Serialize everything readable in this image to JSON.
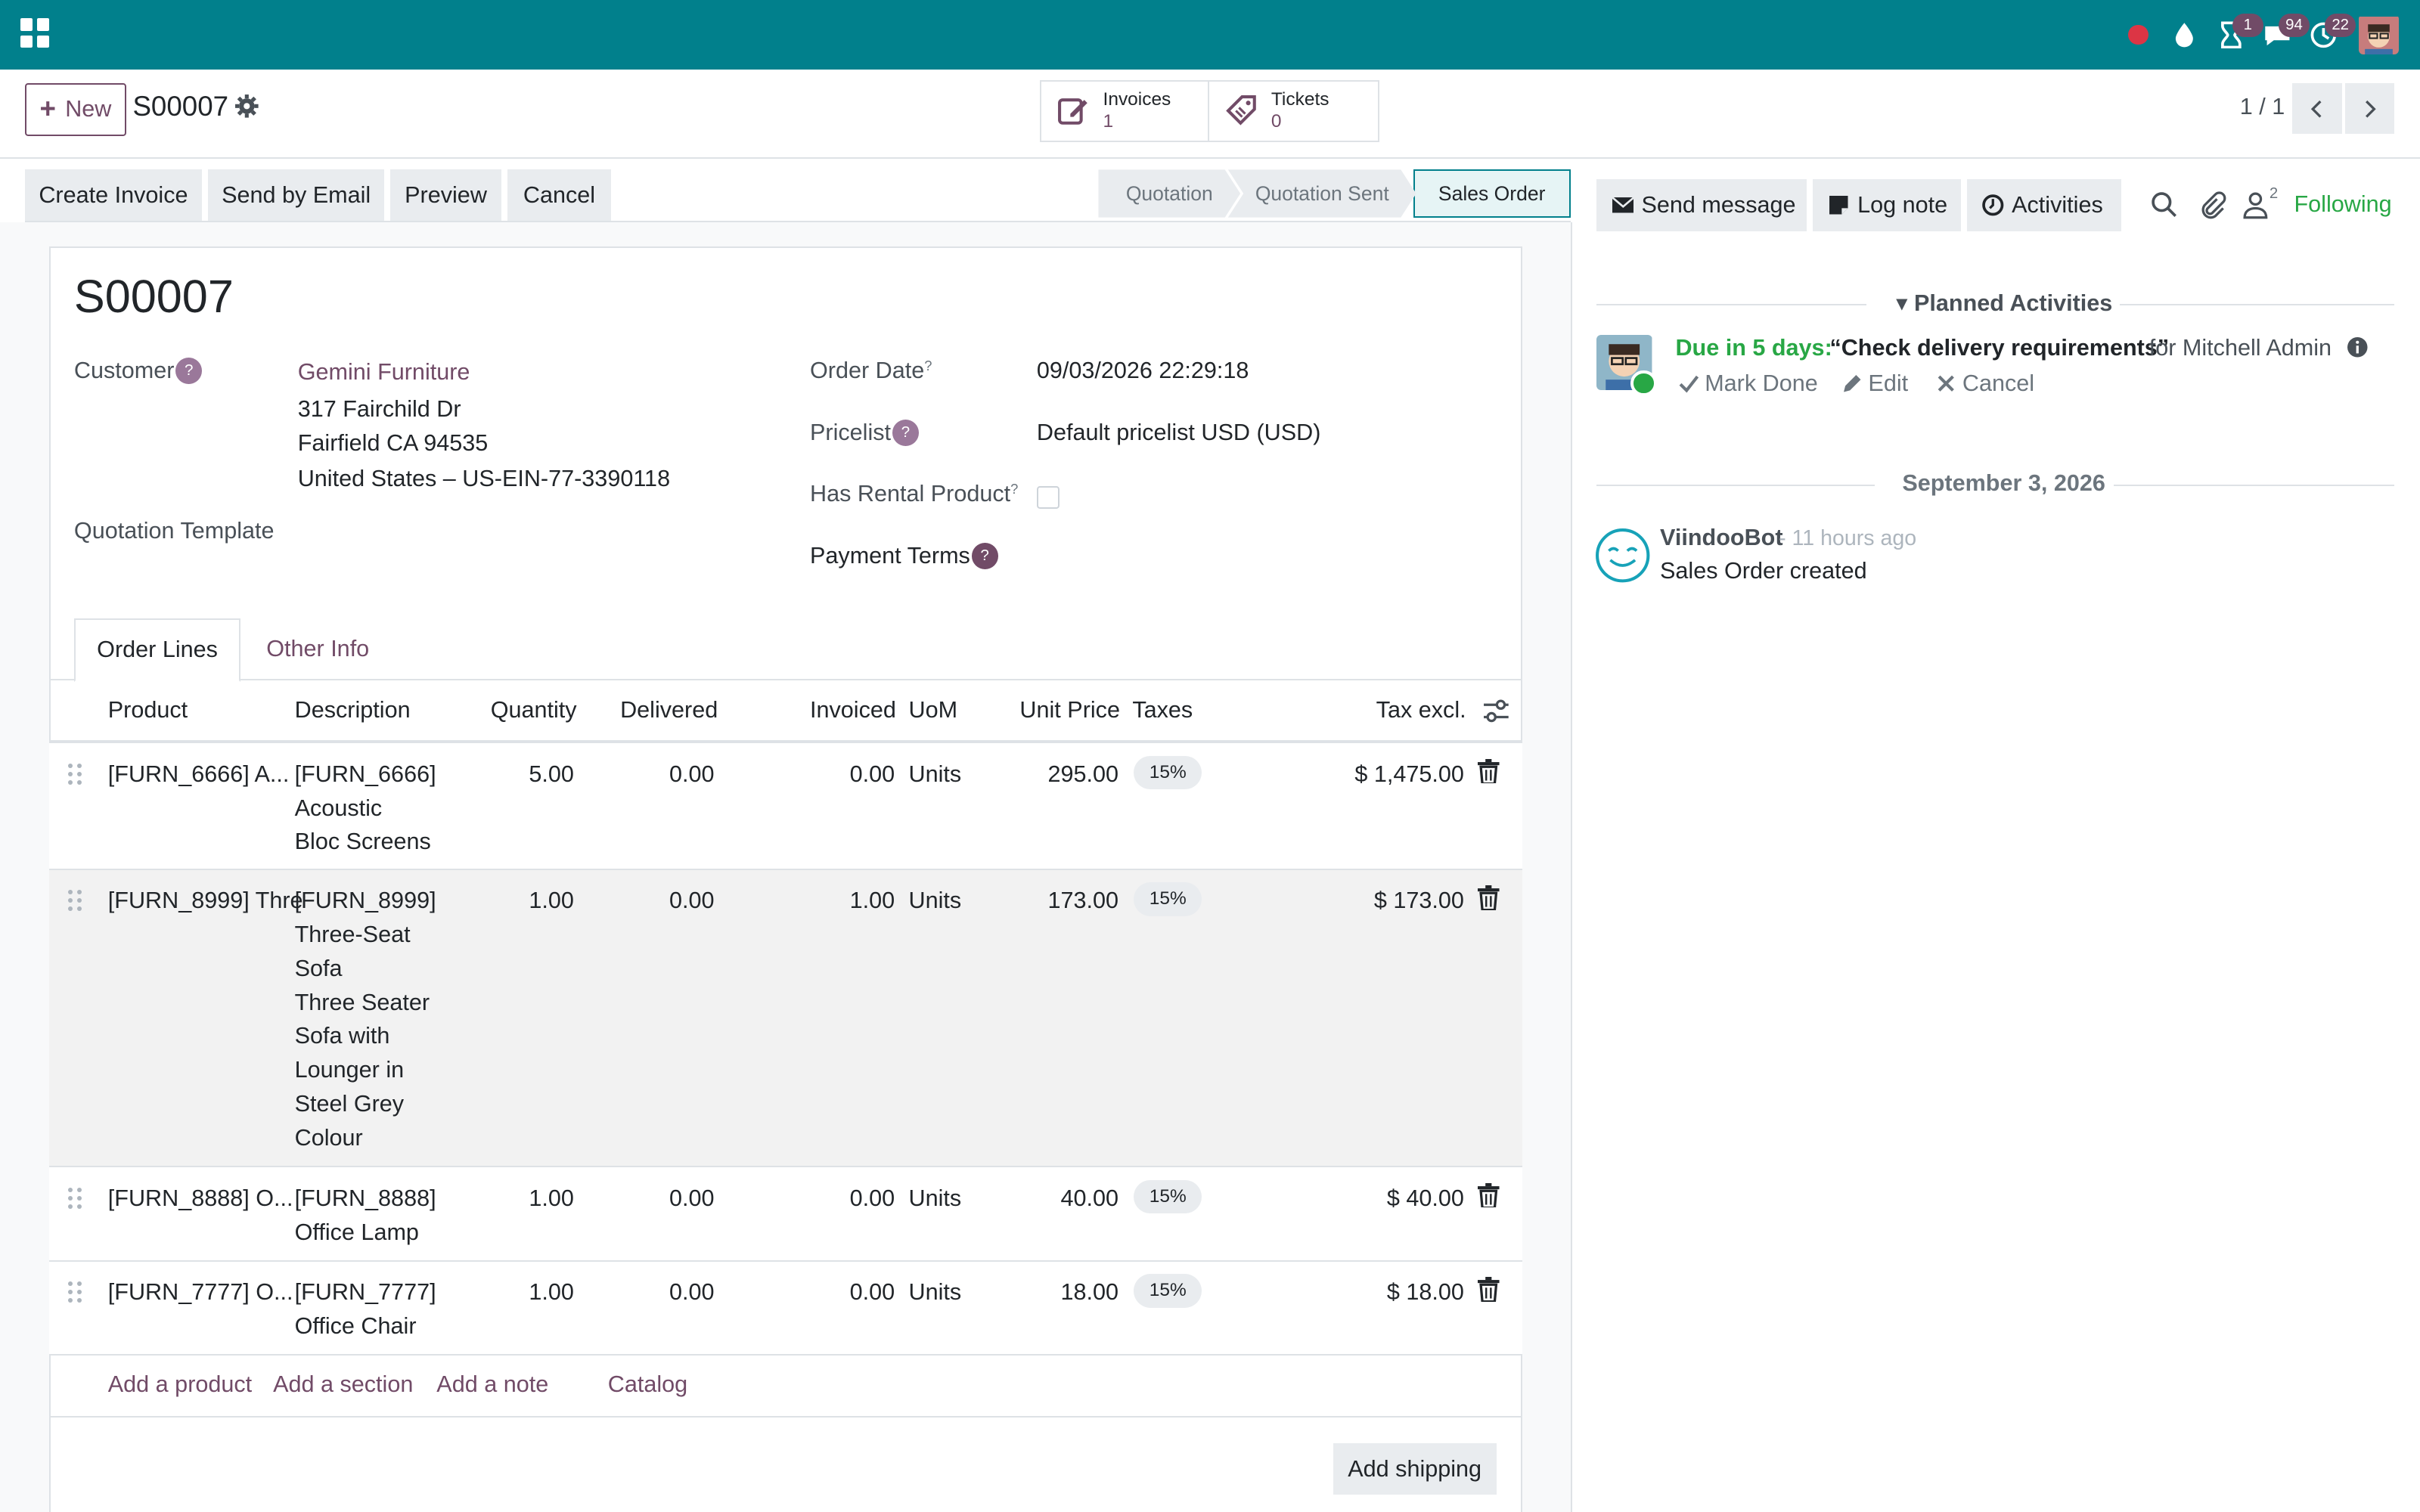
{
  "navbar": {
    "badges": {
      "activities": "1",
      "messages": "94",
      "clock": "22"
    },
    "accent": "#01808c"
  },
  "control_panel": {
    "new_label": "New",
    "record_name": "S00007",
    "smart_buttons": [
      {
        "label": "Invoices",
        "value": "1",
        "icon": "edit-icon"
      },
      {
        "label": "Tickets",
        "value": "0",
        "icon": "ticket-icon"
      }
    ],
    "pager": "1 / 1"
  },
  "statusbar": {
    "actions": [
      "Create Invoice",
      "Send by Email",
      "Preview",
      "Cancel"
    ],
    "stages": [
      "Quotation",
      "Quotation Sent",
      "Sales Order"
    ],
    "active_stage": "Sales Order"
  },
  "form": {
    "title": "S00007",
    "customer_label": "Customer",
    "customer_name": "Gemini Furniture",
    "customer_address": [
      "317 Fairchild Dr",
      "Fairfield CA 94535",
      "United States – US-EIN-77-3390118"
    ],
    "quotation_template_label": "Quotation Template",
    "order_date_label": "Order Date",
    "order_date": "09/03/2026 22:29:18",
    "pricelist_label": "Pricelist",
    "pricelist": "Default pricelist USD (USD)",
    "rental_label": "Has Rental Product",
    "payment_terms_label": "Payment Terms",
    "help_mark": "?"
  },
  "tabs": [
    "Order Lines",
    "Other Info"
  ],
  "table": {
    "headers": [
      "Product",
      "Description",
      "Quantity",
      "Delivered",
      "Invoiced",
      "UoM",
      "Unit Price",
      "Taxes",
      "Tax excl."
    ],
    "rows": [
      {
        "product": "[FURN_6666] A...",
        "description": [
          "[FURN_6666]",
          "Acoustic",
          "Bloc Screens"
        ],
        "quantity": "5.00",
        "delivered": "0.00",
        "invoiced": "0.00",
        "uom": "Units",
        "unit_price": "295.00",
        "tax": "15%",
        "subtotal": "$ 1,475.00"
      },
      {
        "product": "[FURN_8999] Thre",
        "description": [
          "[FURN_8999]",
          "Three-Seat",
          "Sofa",
          "Three Seater",
          "Sofa with",
          "Lounger in",
          "Steel Grey",
          "Colour"
        ],
        "quantity": "1.00",
        "delivered": "0.00",
        "invoiced": "1.00",
        "uom": "Units",
        "unit_price": "173.00",
        "tax": "15%",
        "subtotal": "$ 173.00"
      },
      {
        "product": "[FURN_8888] O...",
        "description": [
          "[FURN_8888]",
          "Office Lamp"
        ],
        "quantity": "1.00",
        "delivered": "0.00",
        "invoiced": "0.00",
        "uom": "Units",
        "unit_price": "40.00",
        "tax": "15%",
        "subtotal": "$ 40.00"
      },
      {
        "product": "[FURN_7777] O...",
        "description": [
          "[FURN_7777]",
          "Office Chair"
        ],
        "quantity": "1.00",
        "delivered": "0.00",
        "invoiced": "0.00",
        "uom": "Units",
        "unit_price": "18.00",
        "tax": "15%",
        "subtotal": "$ 18.00"
      }
    ],
    "add_links": [
      "Add a product",
      "Add a section",
      "Add a note",
      "Catalog"
    ],
    "add_shipping": "Add shipping"
  },
  "chatter": {
    "send_message": "Send message",
    "log_note": "Log note",
    "activities": "Activities",
    "follower_count": "2",
    "following": "Following",
    "planned_title": "Planned Activities",
    "activity": {
      "due": "Due in 5 days:",
      "summary": "“Check delivery requirements”",
      "for": "for Mitchell Admin",
      "mark_done": "Mark Done",
      "edit": "Edit",
      "cancel": "Cancel"
    },
    "date_separator": "September 3, 2026",
    "message": {
      "author": "ViindooBot",
      "time": "- 11 hours ago",
      "body": "Sales Order created"
    }
  }
}
